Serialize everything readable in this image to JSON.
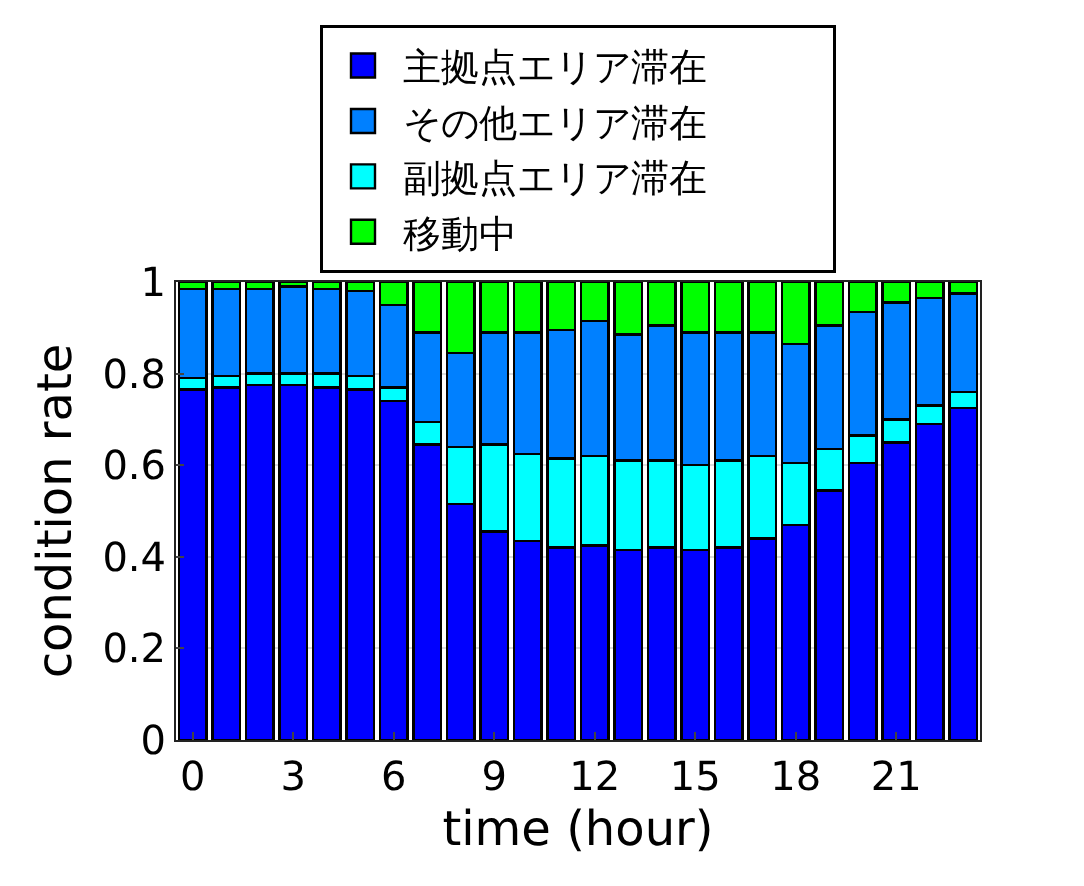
{
  "chart_data": {
    "type": "bar",
    "stacked": true,
    "xlabel": "time (hour)",
    "ylabel": "condition rate",
    "x": [
      0,
      1,
      2,
      3,
      4,
      5,
      6,
      7,
      8,
      9,
      10,
      11,
      12,
      13,
      14,
      15,
      16,
      17,
      18,
      19,
      20,
      21,
      22,
      23
    ],
    "xlim": [
      -0.5,
      23.5
    ],
    "xticks": [
      0,
      3,
      6,
      9,
      12,
      15,
      18,
      21
    ],
    "ylim": [
      0,
      1
    ],
    "yticks": [
      0,
      0.2,
      0.4,
      0.6,
      0.8,
      1
    ],
    "grid": true,
    "legend": "top",
    "series": [
      {
        "name": "主拠点エリア滞在",
        "color": "#0000ff",
        "values": [
          0.765,
          0.77,
          0.775,
          0.775,
          0.77,
          0.765,
          0.74,
          0.645,
          0.515,
          0.455,
          0.435,
          0.42,
          0.425,
          0.415,
          0.42,
          0.415,
          0.42,
          0.44,
          0.47,
          0.545,
          0.605,
          0.65,
          0.69,
          0.725
        ]
      },
      {
        "name": "副拠点エリア滞在",
        "color": "#00ffff",
        "values": [
          0.025,
          0.025,
          0.025,
          0.025,
          0.03,
          0.03,
          0.03,
          0.05,
          0.125,
          0.19,
          0.19,
          0.195,
          0.195,
          0.195,
          0.19,
          0.185,
          0.19,
          0.18,
          0.135,
          0.09,
          0.06,
          0.05,
          0.04,
          0.035
        ]
      },
      {
        "name": "その他エリア滞在",
        "color": "#0080ff",
        "values": [
          0.195,
          0.19,
          0.185,
          0.19,
          0.185,
          0.185,
          0.18,
          0.195,
          0.205,
          0.245,
          0.265,
          0.28,
          0.295,
          0.275,
          0.295,
          0.29,
          0.28,
          0.27,
          0.26,
          0.27,
          0.27,
          0.255,
          0.235,
          0.215
        ]
      },
      {
        "name": "移動中",
        "color": "#00ff00",
        "values": [
          0.015,
          0.015,
          0.015,
          0.01,
          0.015,
          0.02,
          0.05,
          0.11,
          0.155,
          0.11,
          0.11,
          0.105,
          0.085,
          0.115,
          0.095,
          0.11,
          0.11,
          0.11,
          0.135,
          0.095,
          0.065,
          0.045,
          0.035,
          0.025
        ]
      }
    ]
  }
}
